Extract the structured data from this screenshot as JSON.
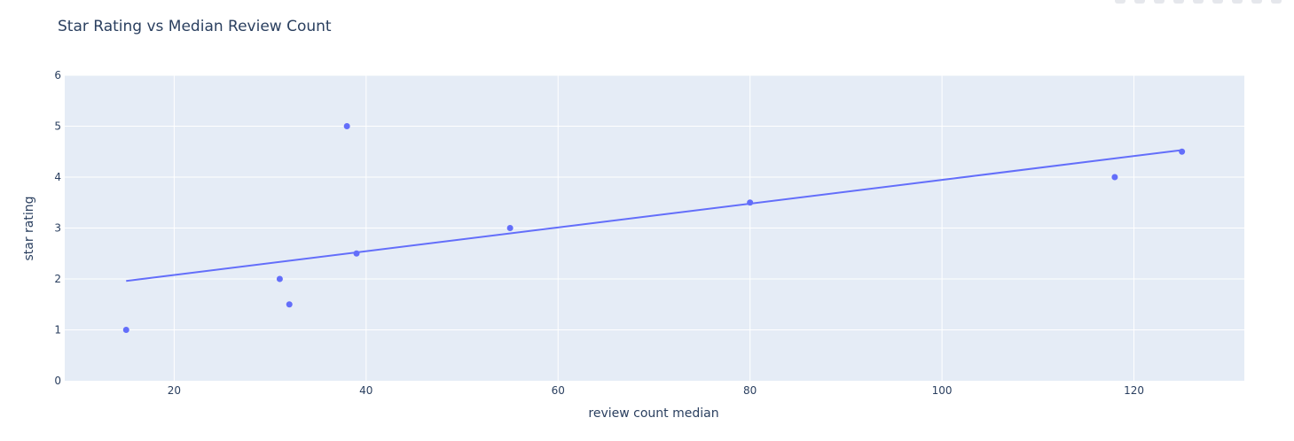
{
  "chart_data": {
    "type": "scatter",
    "title": "Star Rating vs Median Review Count",
    "xlabel": "review count median",
    "ylabel": "star rating",
    "xlim": [
      8.6,
      131.5
    ],
    "ylim": [
      0,
      6
    ],
    "x_ticks": [
      20,
      40,
      60,
      80,
      100,
      120
    ],
    "y_ticks": [
      0,
      1,
      2,
      3,
      4,
      5,
      6
    ],
    "grid": true,
    "legend": "none",
    "colors": {
      "marker": "#636efa",
      "trendline": "#636efa",
      "plot_bg": "#e5ecf6",
      "grid": "#ffffff",
      "text": "#2a3f5f"
    },
    "series": [
      {
        "x": [
          15,
          31,
          32,
          38,
          39,
          55,
          80,
          118,
          125
        ],
        "y": [
          1,
          2,
          1.5,
          5,
          2.5,
          3,
          3.5,
          4,
          4.5
        ]
      }
    ],
    "trendline": {
      "x": [
        15,
        125
      ],
      "y": [
        1.96,
        4.53
      ]
    }
  }
}
